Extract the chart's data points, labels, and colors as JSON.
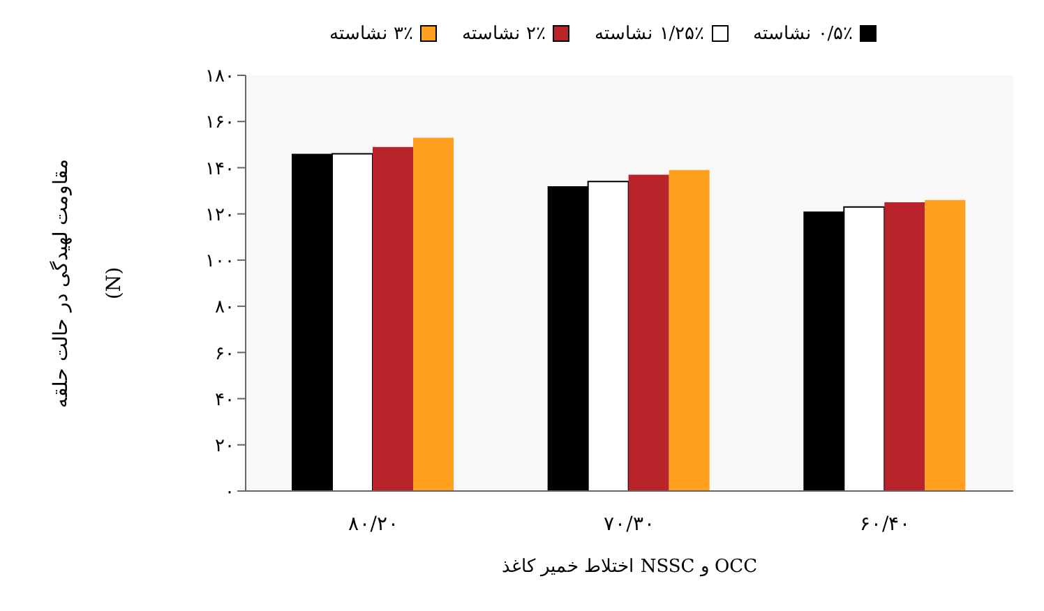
{
  "chart_data": {
    "type": "bar",
    "categories": [
      "۸۰/۲۰",
      "۷۰/۳۰",
      "۶۰/۴۰"
    ],
    "series": [
      {
        "name": "۰/۵٪ نشاسته",
        "color": "#000000",
        "values": [
          146,
          132,
          121
        ]
      },
      {
        "name": "۱/۲۵٪ نشاسته",
        "color": "#ffffff",
        "values": [
          146,
          134,
          123
        ]
      },
      {
        "name": "۲٪ نشاسته",
        "color": "#b8242a",
        "values": [
          149,
          137,
          125
        ]
      },
      {
        "name": "۳٪ نشاسته",
        "color": "#ffa01e",
        "values": [
          153,
          139,
          126
        ]
      }
    ],
    "ylabel": "مقاومت لهیدگی در حالت حلقه (N)",
    "xlabel": "اختلاط خمیر کاغذ NSSC و OCC",
    "ylim": [
      0,
      180
    ],
    "yticks": [
      {
        "value": 0,
        "label": "۰"
      },
      {
        "value": 20,
        "label": "۲۰"
      },
      {
        "value": 40,
        "label": "۴۰"
      },
      {
        "value": 60,
        "label": "۶۰"
      },
      {
        "value": 80,
        "label": "۸۰"
      },
      {
        "value": 100,
        "label": "۱۰۰"
      },
      {
        "value": 120,
        "label": "۱۲۰"
      },
      {
        "value": 140,
        "label": "۱۴۰"
      },
      {
        "value": 160,
        "label": "۱۶۰"
      },
      {
        "value": 180,
        "label": "۱۸۰"
      }
    ],
    "grid": false,
    "legend": "top"
  }
}
